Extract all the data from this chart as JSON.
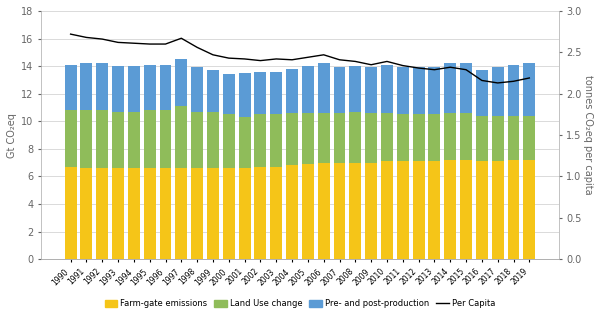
{
  "years": [
    1990,
    1991,
    1992,
    1993,
    1994,
    1995,
    1996,
    1997,
    1998,
    1999,
    2000,
    2001,
    2002,
    2003,
    2004,
    2005,
    2006,
    2007,
    2008,
    2009,
    2010,
    2011,
    2012,
    2013,
    2014,
    2015,
    2016,
    2017,
    2018,
    2019
  ],
  "farmgate": [
    6.7,
    6.6,
    6.6,
    6.6,
    6.6,
    6.6,
    6.6,
    6.6,
    6.6,
    6.6,
    6.6,
    6.6,
    6.7,
    6.7,
    6.8,
    6.9,
    7.0,
    7.0,
    7.0,
    7.0,
    7.1,
    7.1,
    7.1,
    7.1,
    7.2,
    7.2,
    7.1,
    7.1,
    7.2,
    7.2
  ],
  "landuse": [
    4.1,
    4.2,
    4.2,
    4.1,
    4.1,
    4.2,
    4.2,
    4.5,
    4.1,
    4.1,
    3.9,
    3.7,
    3.8,
    3.8,
    3.8,
    3.7,
    3.6,
    3.6,
    3.7,
    3.6,
    3.5,
    3.4,
    3.4,
    3.4,
    3.4,
    3.4,
    3.3,
    3.3,
    3.2,
    3.2
  ],
  "prepost": [
    3.3,
    3.4,
    3.4,
    3.3,
    3.3,
    3.3,
    3.3,
    3.4,
    3.2,
    3.0,
    2.9,
    3.2,
    3.1,
    3.1,
    3.2,
    3.4,
    3.6,
    3.3,
    3.3,
    3.3,
    3.5,
    3.4,
    3.4,
    3.4,
    3.6,
    3.6,
    3.3,
    3.5,
    3.7,
    3.8
  ],
  "per_capita": [
    2.72,
    2.68,
    2.66,
    2.62,
    2.61,
    2.6,
    2.6,
    2.67,
    2.56,
    2.47,
    2.43,
    2.42,
    2.4,
    2.42,
    2.41,
    2.44,
    2.47,
    2.41,
    2.39,
    2.35,
    2.39,
    2.34,
    2.31,
    2.29,
    2.32,
    2.29,
    2.16,
    2.13,
    2.15,
    2.19
  ],
  "bar_colors": [
    "#f5c518",
    "#8fbc5a",
    "#5b9bd5"
  ],
  "line_color": "#000000",
  "ylabel_left": "Gt CO₂eq",
  "ylabel_right": "tonnes CO₂eq per capita",
  "ylim_left": [
    0,
    18
  ],
  "ylim_right": [
    0,
    3
  ],
  "yticks_left": [
    0,
    2,
    4,
    6,
    8,
    10,
    12,
    14,
    16,
    18
  ],
  "yticks_right": [
    0,
    0.5,
    1.0,
    1.5,
    2.0,
    2.5,
    3.0
  ],
  "legend_labels": [
    "Farm-gate emissions",
    "Land Use change",
    "Pre- and post-production",
    "Per Capita"
  ],
  "background_color": "#ffffff",
  "grid_color": "#cccccc",
  "spine_color": "#aaaaaa"
}
